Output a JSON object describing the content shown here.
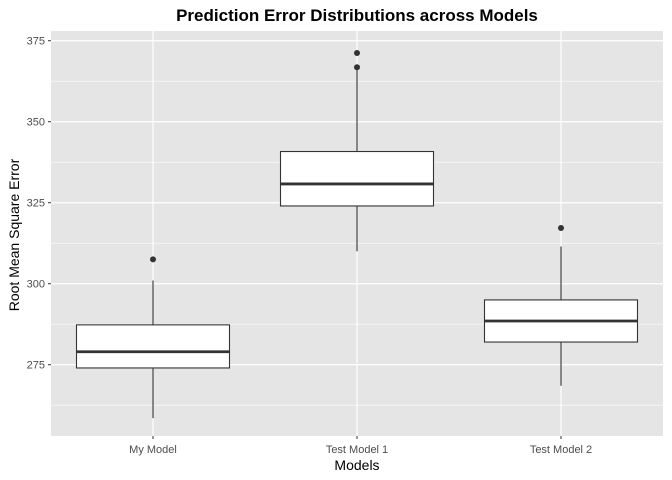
{
  "chart_data": {
    "type": "box",
    "title": "Prediction Error Distributions across Models",
    "xlabel": "Models",
    "ylabel": "Root Mean Square Error",
    "ylim": [
      253,
      378
    ],
    "yticks": [
      275,
      300,
      325,
      350,
      375
    ],
    "grid": true,
    "categories": [
      "My Model",
      "Test Model 1",
      "Test Model 2"
    ],
    "boxes": [
      {
        "category": "My Model",
        "whisker_low": 258.5,
        "q1": 274,
        "median": 279,
        "q3": 287.3,
        "whisker_high": 301,
        "outliers": [
          307.5
        ]
      },
      {
        "category": "Test Model 1",
        "whisker_low": 310,
        "q1": 324,
        "median": 330.8,
        "q3": 340.8,
        "whisker_high": 366,
        "outliers": [
          366.8,
          371.2
        ]
      },
      {
        "category": "Test Model 2",
        "whisker_low": 268.5,
        "q1": 282,
        "median": 288.5,
        "q3": 295,
        "whisker_high": 311.5,
        "outliers": [
          317.2
        ]
      }
    ],
    "colors": {
      "panel": "#e5e5e5",
      "grid": "#ffffff",
      "box_fill": "#ffffff",
      "box_stroke": "#333333",
      "outlier": "#333333"
    }
  }
}
